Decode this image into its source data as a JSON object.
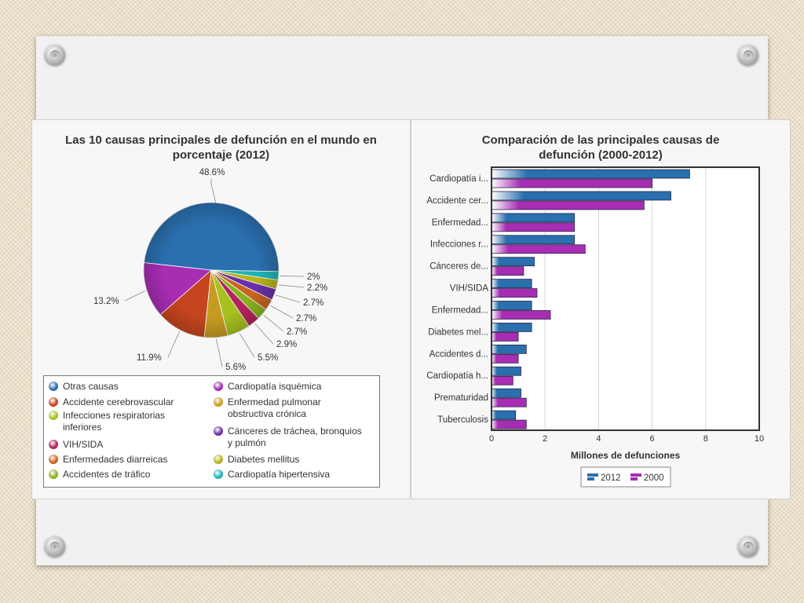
{
  "left_chart": {
    "title_line1": "Las 10 causas principales de defunción en el mundo en",
    "title_line2": "porcentaje (2012)"
  },
  "right_chart": {
    "title_line1": "Comparación de las principales causas de",
    "title_line2": "defunción (2000-2012)"
  },
  "chart_data": [
    {
      "type": "pie",
      "title": "Las 10 causas principales de defunción en el mundo en porcentaje (2012)",
      "slices": [
        {
          "name": "Otras causas",
          "value": 48.6,
          "label": "48.6%",
          "color": "#2a6fae"
        },
        {
          "name": "Cardiopatía hipertensiva",
          "value": 2.0,
          "label": "2%",
          "color": "#1fb3b5"
        },
        {
          "name": "Diabetes mellitus",
          "value": 2.2,
          "label": "2.2%",
          "color": "#b8b21d"
        },
        {
          "name": "Cánceres de tráchea, bronquios y pulmón",
          "value": 2.7,
          "label": "2.7%",
          "color": "#6a2fa8"
        },
        {
          "name": "Enfermedades diarreicas",
          "value": 2.7,
          "label": "2.7%",
          "color": "#c8641f"
        },
        {
          "name": "Accidentes de tráfico",
          "value": 2.7,
          "label": "2.7%",
          "color": "#8ab21f"
        },
        {
          "name": "VIH/SIDA",
          "value": 2.9,
          "label": "2.9%",
          "color": "#b3235e"
        },
        {
          "name": "Infecciones respiratorias inferiores",
          "value": 5.5,
          "label": "5.5%",
          "color": "#a7c11f"
        },
        {
          "name": "Enfermedad pulmonar obstructiva crónica",
          "value": 5.6,
          "label": "5.6%",
          "color": "#c79a22"
        },
        {
          "name": "Accidente cerebrovascular",
          "value": 11.9,
          "label": "11.9%",
          "color": "#c5451e"
        },
        {
          "name": "Cardiopatía isquémica",
          "value": 13.2,
          "label": "13.2%",
          "color": "#a72db3"
        }
      ],
      "legend": [
        {
          "name": "Otras causas",
          "color": "#2a6fae"
        },
        {
          "name": "Cardiopatía isquémica",
          "color": "#a72db3"
        },
        {
          "name": "Accidente cerebrovascular",
          "color": "#c5451e"
        },
        {
          "name": "Enfermedad pulmonar obstructiva crónica",
          "color": "#c79a22"
        },
        {
          "name": "Infecciones respiratorias inferiores",
          "color": "#a7c11f"
        },
        {
          "name": "Cánceres de tráchea, bronquios y pulmón",
          "color": "#6a2fa8"
        },
        {
          "name": "VIH/SIDA",
          "color": "#b3235e"
        },
        {
          "name": "Enfermedades diarreicas",
          "color": "#c8641f"
        },
        {
          "name": "Diabetes mellitus",
          "color": "#b8b21d"
        },
        {
          "name": "Accidentes de tráfico",
          "color": "#8ab21f"
        },
        {
          "name": "Cardiopatía hipertensiva",
          "color": "#1fb3b5"
        }
      ]
    },
    {
      "type": "bar",
      "orientation": "horizontal",
      "title": "Comparación de las principales causas de defunción (2000-2012)",
      "xlabel": "Millones de defunciones",
      "xlim": [
        0,
        10
      ],
      "xticks": [
        "0",
        "2",
        "4",
        "6",
        "8",
        "10"
      ],
      "categories": [
        "Cardiopatía i...",
        "Accidente cer...",
        "Enfermedad...",
        "Infecciones r...",
        "Cánceres de...",
        "VIH/SIDA",
        "Enfermedad...",
        "Diabetes mel...",
        "Accidentes d...",
        "Cardiopatía h...",
        "Prematuridad",
        "Tuberculosis"
      ],
      "series": [
        {
          "name": "2012",
          "color": "#2a6fae",
          "values": [
            7.4,
            6.7,
            3.1,
            3.1,
            1.6,
            1.5,
            1.5,
            1.5,
            1.3,
            1.1,
            1.1,
            0.9
          ]
        },
        {
          "name": "2000",
          "color": "#a72db3",
          "values": [
            6.0,
            5.7,
            3.1,
            3.5,
            1.2,
            1.7,
            2.2,
            1.0,
            1.0,
            0.8,
            1.3,
            1.3
          ]
        }
      ],
      "legend_position": "bottom"
    }
  ]
}
